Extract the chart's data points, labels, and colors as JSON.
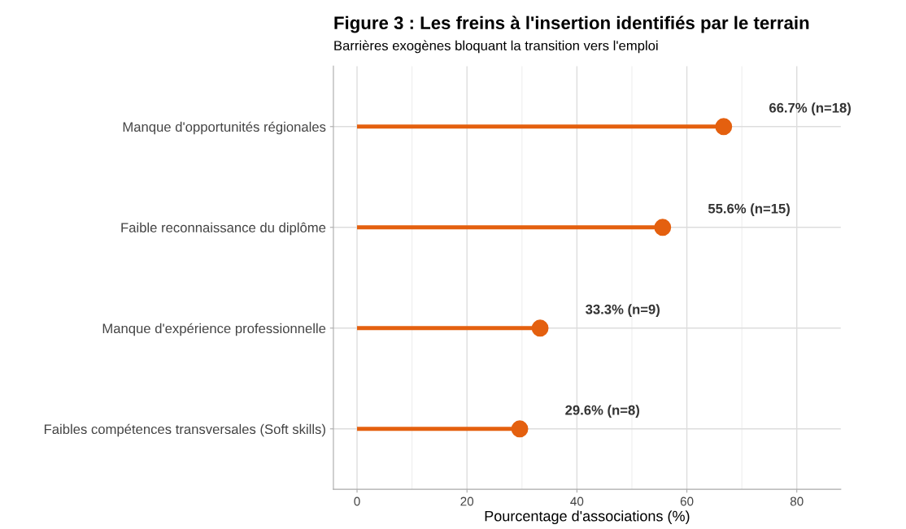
{
  "chart_data": {
    "type": "lollipop",
    "orientation": "horizontal",
    "title": "Figure 3 : Les freins à l'insertion identifiés par le terrain",
    "subtitle": "Barrières exogènes bloquant la transition vers l'emploi",
    "xlabel": "Pourcentage d'associations (%)",
    "categories": [
      "Manque d'opportunités régionales",
      "Faible reconnaissance du diplôme",
      "Manque d'expérience professionnelle",
      "Faibles compétences transversales (Soft skills)"
    ],
    "series": [
      {
        "color": "#e4600f",
        "values": [
          66.7,
          55.6,
          33.3,
          29.6
        ],
        "value_labels": [
          "66.7% (n=18)",
          "55.6% (n=15)",
          "33.3% (n=9)",
          "29.6% (n=8)"
        ]
      }
    ],
    "xlim": [
      -4.3,
      88
    ],
    "xticks": [
      0,
      20,
      40,
      60,
      80
    ],
    "grid": true,
    "marker": "circle"
  }
}
